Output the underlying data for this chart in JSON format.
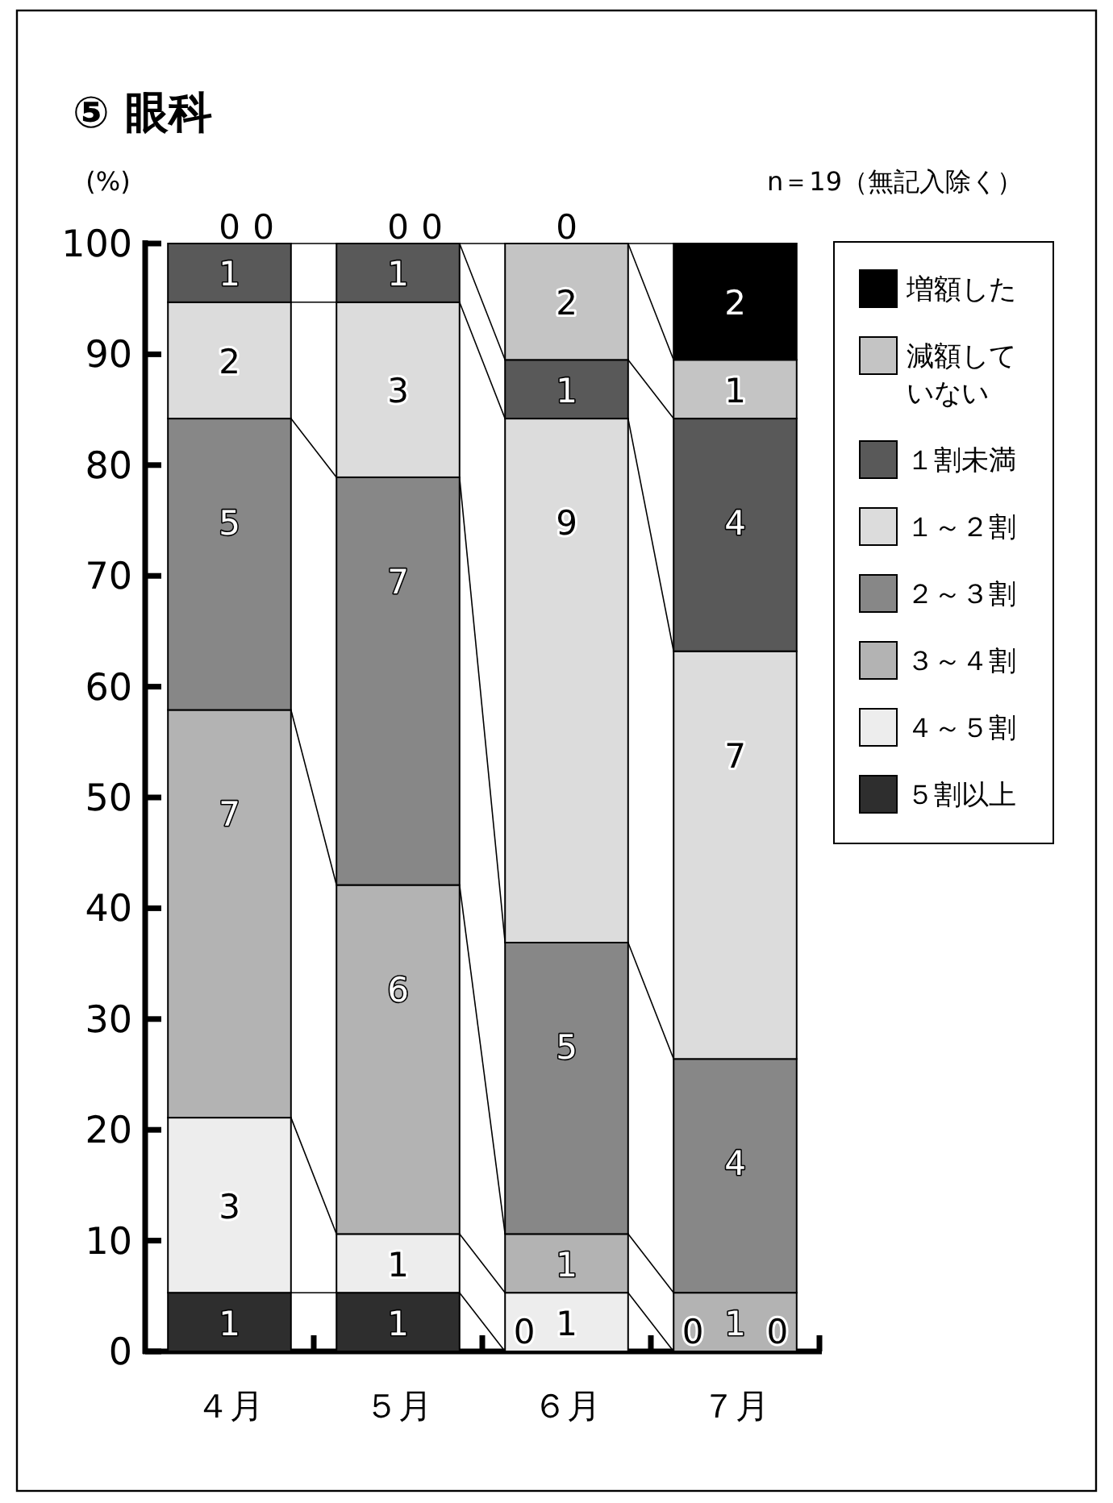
{
  "chart_data": {
    "type": "bar",
    "stacked": true,
    "title": "⑤ 眼科",
    "ylabel": "(%)",
    "annotations": [
      "n＝19（無記入除く）",
      {
        "text": "1",
        "x": "４月",
        "y": 5.3
      },
      {
        "text": "3",
        "x": "４月",
        "y": 21.1
      },
      {
        "text": "7",
        "x": "４月",
        "y": 57.9
      },
      {
        "text": "5",
        "x": "４月",
        "y": 84.2
      },
      {
        "text": "2",
        "x": "４月",
        "y": 94.7
      },
      {
        "text": "1",
        "x": "４月",
        "y": 100
      },
      {
        "text": "0",
        "x": "４月",
        "y": 100
      },
      {
        "text": "0",
        "x": "４月",
        "y": 100
      },
      {
        "text": "1",
        "x": "５月",
        "y": 5.3
      },
      {
        "text": "1",
        "x": "５月",
        "y": 10.6
      },
      {
        "text": "6",
        "x": "５月",
        "y": 42.1
      },
      {
        "text": "7",
        "x": "５月",
        "y": 78.9
      },
      {
        "text": "3",
        "x": "５月",
        "y": 94.7
      },
      {
        "text": "1",
        "x": "５月",
        "y": 100
      },
      {
        "text": "0",
        "x": "５月",
        "y": 100
      },
      {
        "text": "0",
        "x": "５月",
        "y": 100
      },
      {
        "text": "0",
        "x": "６月",
        "y": 0
      },
      {
        "text": "1",
        "x": "６月",
        "y": 5.3
      },
      {
        "text": "1",
        "x": "６月",
        "y": 10.6
      },
      {
        "text": "5",
        "x": "６月",
        "y": 36.9
      },
      {
        "text": "9",
        "x": "６月",
        "y": 84.2
      },
      {
        "text": "1",
        "x": "６月",
        "y": 89.5
      },
      {
        "text": "2",
        "x": "６月",
        "y": 100
      },
      {
        "text": "0",
        "x": "６月",
        "y": 100
      },
      {
        "text": "0",
        "x": "７月",
        "y": 0
      },
      {
        "text": "0",
        "x": "７月",
        "y": 0
      },
      {
        "text": "1",
        "x": "７月",
        "y": 5.3
      },
      {
        "text": "4",
        "x": "７月",
        "y": 26.4
      },
      {
        "text": "7",
        "x": "７月",
        "y": 63.2
      },
      {
        "text": "4",
        "x": "７月",
        "y": 84.2
      },
      {
        "text": "1",
        "x": "７月",
        "y": 89.5
      },
      {
        "text": "2",
        "x": "７月",
        "y": 100
      }
    ],
    "categories": [
      "４月",
      "５月",
      "６月",
      "７月"
    ],
    "ylim": [
      0,
      100
    ],
    "yticks": [
      0,
      10,
      20,
      30,
      40,
      50,
      60,
      70,
      80,
      90,
      100
    ],
    "legend": "top right",
    "series": [
      {
        "name": "５割以上",
        "color": "#2e2e2e",
        "values": [
          5.3,
          5.3,
          0,
          0
        ]
      },
      {
        "name": "４～５割",
        "color": "#ededed",
        "values": [
          15.8,
          5.3,
          5.3,
          0
        ]
      },
      {
        "name": "３～４割",
        "color": "#b3b3b3",
        "values": [
          36.8,
          31.5,
          5.3,
          5.3
        ]
      },
      {
        "name": "２～３割",
        "color": "#878787",
        "values": [
          26.3,
          36.8,
          26.3,
          21.1
        ]
      },
      {
        "name": "１～２割",
        "color": "#dcdcdc",
        "values": [
          10.5,
          15.8,
          47.3,
          36.8
        ]
      },
      {
        "name": "１割未満",
        "color": "#595959",
        "values": [
          5.3,
          5.3,
          5.3,
          21.0
        ]
      },
      {
        "name": "減額していない",
        "color": "#c4c4c4",
        "values": [
          0,
          0,
          10.5,
          5.3
        ]
      },
      {
        "name": "増額した",
        "color": "#000000",
        "values": [
          0,
          0,
          0,
          10.5
        ]
      }
    ]
  }
}
